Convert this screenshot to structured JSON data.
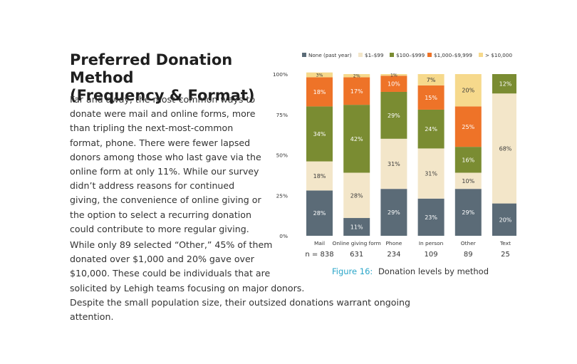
{
  "text": {
    "title_line1": "Preferred Donation Method",
    "title_line2": "(Frequency & Format)",
    "paragraph1": "Far and away, the most-common ways to donate were mail and online forms, more than tripling the next-most-common format, phone. There were fewer lapsed donors among those who last gave via the online form at only 11%. While our survey didn’t address reasons for continued giving, the convenience of online giving or the option to select a recurring donation could contribute to more regular giving.",
    "paragraph2_line1": "While only 89 selected “Other,” 45% of them",
    "paragraph2_line2": "donated over $1,000 and 20% gave over",
    "paragraph2_line3": "$10,000. These could be individuals that are",
    "paragraph2_line4": "solicited by Lehigh teams focusing on major donors.",
    "paragraph2_line5": "Despite the small population size, their outsized donations warrant ongoing attention."
  },
  "caption": {
    "figure": "Figure 16:",
    "text": "Donation levels by method"
  },
  "chart_data": {
    "type": "bar",
    "stacked": true,
    "orientation": "vertical",
    "categories": [
      "Mail",
      "Online giving form",
      "Phone",
      "In person",
      "Other",
      "Text"
    ],
    "n_prefix": "n = ",
    "n_values": [
      "838",
      "631",
      "234",
      "109",
      "89",
      "25"
    ],
    "yticks": [
      "0%",
      "25%",
      "50%",
      "75%",
      "100%"
    ],
    "ylim": [
      0,
      100
    ],
    "legend_position": "top",
    "series": [
      {
        "name": "None (past year)",
        "color": "#5b6b77",
        "label_color": "#ffffff",
        "values": [
          28,
          11,
          29,
          23,
          29,
          20
        ],
        "labels": [
          "28%",
          "11%",
          "29%",
          "23%",
          "29%",
          "20%"
        ]
      },
      {
        "name": "$1–$99",
        "color": "#f3e6c9",
        "label_color": "#3a3a3a",
        "values": [
          18,
          28,
          31,
          31,
          10,
          68
        ],
        "labels": [
          "18%",
          "28%",
          "31%",
          "31%",
          "10%",
          "68%"
        ]
      },
      {
        "name": "$100–$999",
        "color": "#7a8c32",
        "label_color": "#ffffff",
        "values": [
          34,
          42,
          29,
          24,
          16,
          12
        ],
        "labels": [
          "34%",
          "42%",
          "29%",
          "24%",
          "16%",
          "12%"
        ]
      },
      {
        "name": "$1,000–$9,999",
        "color": "#ee7328",
        "label_color": "#ffffff",
        "values": [
          18,
          17,
          10,
          15,
          25,
          0
        ],
        "labels": [
          "18%",
          "17%",
          "10%",
          "15%",
          "25%",
          ""
        ]
      },
      {
        "name": "> $10,000",
        "color": "#f6d98c",
        "label_color": "#3a3a3a",
        "values": [
          3,
          2,
          1,
          7,
          20,
          0
        ],
        "labels": [
          "3%",
          "2%",
          "1%",
          "7%",
          "20%",
          ""
        ]
      }
    ]
  }
}
